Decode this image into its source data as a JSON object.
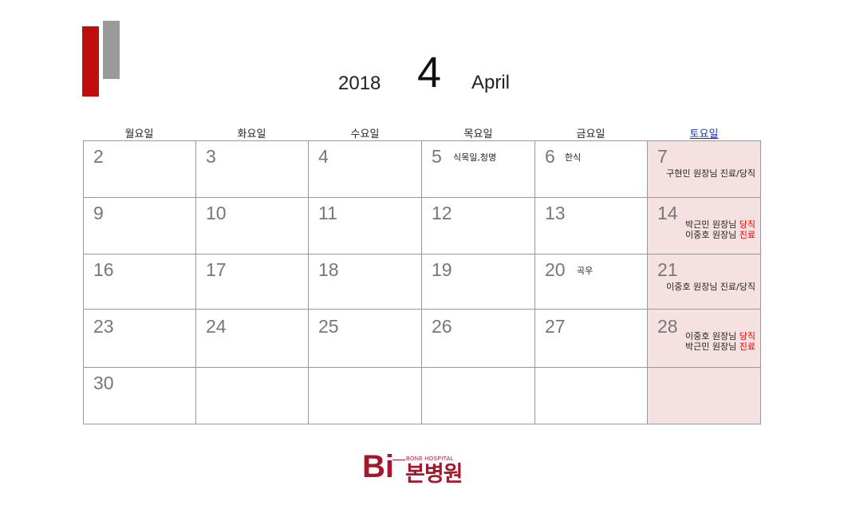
{
  "header": {
    "year": "2018",
    "month_number": "4",
    "month_name": "April"
  },
  "weekdays": [
    "월요일",
    "화요일",
    "수요일",
    "목요일",
    "금요일",
    "토요일"
  ],
  "weeks": [
    [
      {
        "day": "2"
      },
      {
        "day": "3"
      },
      {
        "day": "4"
      },
      {
        "day": "5",
        "note": "식목일,청명"
      },
      {
        "day": "6",
        "note": "한식"
      },
      {
        "day": "7",
        "lines": [
          [
            "구현민 원장님 진료/당직",
            ""
          ]
        ]
      }
    ],
    [
      {
        "day": "9"
      },
      {
        "day": "10"
      },
      {
        "day": "11"
      },
      {
        "day": "12"
      },
      {
        "day": "13"
      },
      {
        "day": "14",
        "lines": [
          [
            "박근민 원장님 ",
            "당직"
          ],
          [
            "이중호 원장님 ",
            "진료"
          ]
        ]
      }
    ],
    [
      {
        "day": "16"
      },
      {
        "day": "17"
      },
      {
        "day": "18"
      },
      {
        "day": "19"
      },
      {
        "day": "20",
        "note": "곡우"
      },
      {
        "day": "21",
        "lines": [
          [
            "이중호 원장님 진료/당직",
            ""
          ]
        ]
      }
    ],
    [
      {
        "day": "23"
      },
      {
        "day": "24"
      },
      {
        "day": "25"
      },
      {
        "day": "26"
      },
      {
        "day": "27"
      },
      {
        "day": "28",
        "lines": [
          [
            "이중호 원장님 ",
            "당직"
          ],
          [
            "박근민 원장님 ",
            "진료"
          ]
        ]
      }
    ],
    [
      {
        "day": "30"
      },
      {
        "day": ""
      },
      {
        "day": ""
      },
      {
        "day": ""
      },
      {
        "day": ""
      },
      {
        "day": ""
      }
    ]
  ],
  "logo": {
    "mark": "Bi",
    "subtitle": "BONE HOSPITAL",
    "name": "본병원"
  },
  "colors": {
    "accent_red": "#c00d0d",
    "accent_gray": "#9a9a9a",
    "saturday_bg": "#f6e1e2",
    "saturday_header": "#1a33b5",
    "highlight": "#ee0000",
    "logo": "#a3182d"
  }
}
